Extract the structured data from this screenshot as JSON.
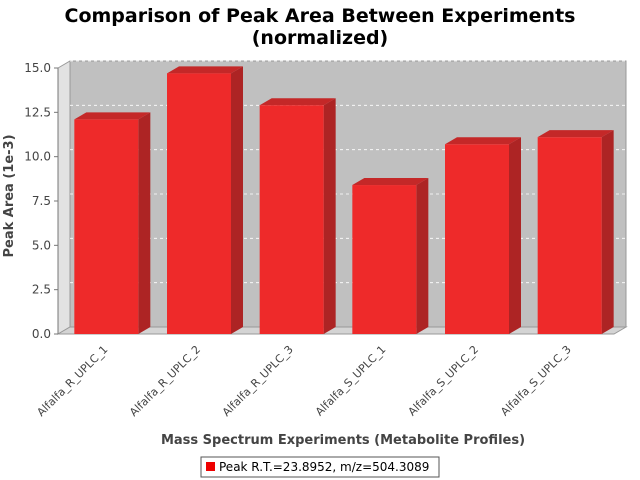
{
  "chart_data": {
    "type": "bar",
    "title_line1": "Comparison of Peak Area Between Experiments",
    "title_line2": "(normalized)",
    "xlabel": "Mass Spectrum Experiments (Metabolite Profiles)",
    "ylabel": "Peak Area (1e-3)",
    "categories": [
      "Alfalfa_R_UPLC_1",
      "Alfalfa_R_UPLC_2",
      "Alfalfa_R_UPLC_3",
      "Alfalfa_S_UPLC_1",
      "Alfalfa_S_UPLC_2",
      "Alfalfa_S_UPLC_3"
    ],
    "series": [
      {
        "name": "Peak R.T.=23.8952, m/z=504.3089",
        "values": [
          12.1,
          14.7,
          12.9,
          8.4,
          10.7,
          11.1
        ]
      }
    ],
    "ylim": [
      0,
      15.0
    ],
    "yticks": [
      "0.0",
      "2.5",
      "5.0",
      "7.5",
      "10.0",
      "12.5",
      "15.0"
    ],
    "ytick_values": [
      0,
      2.5,
      5.0,
      7.5,
      10.0,
      12.5,
      15.0
    ],
    "grid": true,
    "legend_position": "bottom-center",
    "colors": {
      "bar_front": "#ee2a2a",
      "bar_side": "#ad2424",
      "bar_top": "#c42828",
      "plot_bg": "#c0c0c0",
      "wall_side": "#e2e2e2",
      "floor": "#d4d4d4",
      "legend_swatch": "#ee0000"
    }
  }
}
